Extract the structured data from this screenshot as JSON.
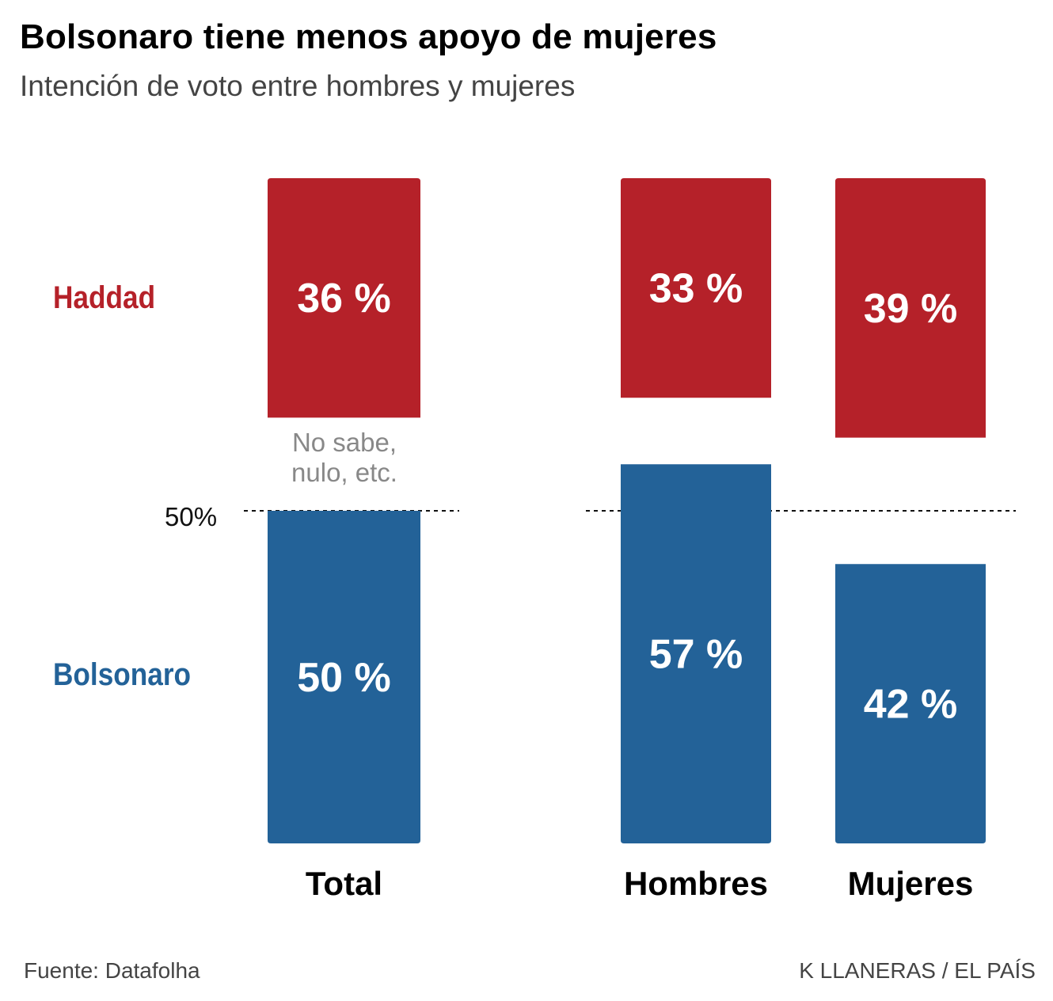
{
  "chart_data": {
    "type": "bar",
    "title": "Bolsonaro tiene menos apoyo de mujeres",
    "subtitle": "Intención de voto entre hombres y mujeres",
    "categories": [
      "Total",
      "Hombres",
      "Mujeres"
    ],
    "series": [
      {
        "name": "Haddad",
        "color": "#b52129",
        "values": [
          36,
          33,
          39
        ],
        "labels": [
          "36 %",
          "33 %",
          "39 %"
        ]
      },
      {
        "name": "Bolsonaro",
        "color": "#236298",
        "values": [
          50,
          57,
          42
        ],
        "labels": [
          "50 %",
          "57 %",
          "42 %"
        ]
      }
    ],
    "reference_line": {
      "value": 50,
      "label": "50%"
    },
    "annotation": "No sabe,\nnulo, etc.",
    "ylim": [
      0,
      100
    ],
    "source": "Fuente: Datafolha",
    "credit": "K LLANERAS / EL PAÍS"
  }
}
